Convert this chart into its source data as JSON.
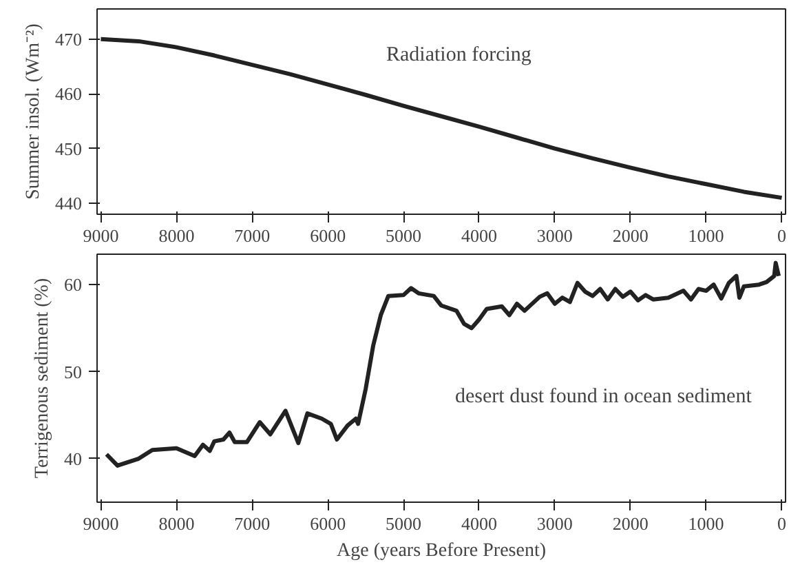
{
  "chart_data": [
    {
      "type": "line",
      "ylabel": "Summer insol. (Wm⁻²)",
      "annotations": [
        "Radiation forcing"
      ],
      "x": [
        9000,
        8500,
        8000,
        7500,
        7000,
        6500,
        6000,
        5500,
        5000,
        4500,
        4000,
        3500,
        3000,
        2500,
        2000,
        1500,
        1000,
        500,
        0
      ],
      "series": [
        {
          "color": "#222222",
          "values": [
            470,
            469.6,
            468.5,
            467,
            465.3,
            463.6,
            461.7,
            459.8,
            457.8,
            455.9,
            454,
            452,
            450,
            448.2,
            446.5,
            444.9,
            443.5,
            442.1,
            441
          ]
        }
      ],
      "xlim": [
        9050,
        -50
      ],
      "ylim": [
        438,
        475.5
      ],
      "xticks": [
        9000,
        8000,
        7000,
        6000,
        5000,
        4000,
        3000,
        2000,
        1000,
        0
      ],
      "yticks": [
        440,
        450,
        460,
        470
      ],
      "grid": false,
      "marker": "none",
      "line_style": "solid"
    },
    {
      "type": "line",
      "xlabel": "Age (years Before Present)",
      "ylabel": "Terrigenous sediment (%)",
      "annotations": [
        "desert dust found in ocean sediment"
      ],
      "x": [
        8925,
        8780,
        8500,
        8320,
        8000,
        7760,
        7650,
        7560,
        7500,
        7380,
        7300,
        7230,
        7070,
        6900,
        6760,
        6560,
        6390,
        6270,
        6080,
        5960,
        5880,
        5740,
        5630,
        5600,
        5500,
        5400,
        5300,
        5200,
        5000,
        4900,
        4800,
        4600,
        4500,
        4300,
        4200,
        4100,
        4000,
        3900,
        3700,
        3600,
        3500,
        3400,
        3200,
        3100,
        3000,
        2900,
        2800,
        2700,
        2600,
        2500,
        2400,
        2300,
        2200,
        2100,
        2000,
        1900,
        1800,
        1700,
        1500,
        1300,
        1200,
        1100,
        1000,
        900,
        800,
        700,
        600,
        560,
        500,
        300,
        200,
        100,
        80,
        40
      ],
      "series": [
        {
          "color": "#222222",
          "values": [
            40.5,
            39.2,
            40,
            41,
            41.2,
            40.3,
            41.6,
            40.9,
            42,
            42.2,
            43,
            41.9,
            41.9,
            44.2,
            42.8,
            45.5,
            41.8,
            45.2,
            44.6,
            44,
            42.2,
            43.8,
            44.6,
            44,
            48,
            53,
            56.5,
            58.7,
            58.8,
            59.6,
            59,
            58.7,
            57.6,
            57,
            55.5,
            55,
            56,
            57.2,
            57.5,
            56.5,
            57.8,
            57,
            58.6,
            59,
            57.8,
            58.5,
            58,
            60.2,
            59.2,
            58.7,
            59.5,
            58.3,
            59.5,
            58.6,
            59.2,
            58.2,
            58.8,
            58.3,
            58.5,
            59.3,
            58.3,
            59.5,
            59.3,
            60,
            58.4,
            60.2,
            61,
            58.5,
            59.8,
            60,
            60.3,
            61,
            62.5,
            61
          ]
        }
      ],
      "xlim": [
        9050,
        -50
      ],
      "ylim": [
        35,
        63.5
      ],
      "xticks": [
        9000,
        8000,
        7000,
        6000,
        5000,
        4000,
        3000,
        2000,
        1000,
        0
      ],
      "yticks": [
        40,
        50,
        60
      ],
      "grid": false,
      "marker": "none",
      "line_style": "solid"
    }
  ]
}
